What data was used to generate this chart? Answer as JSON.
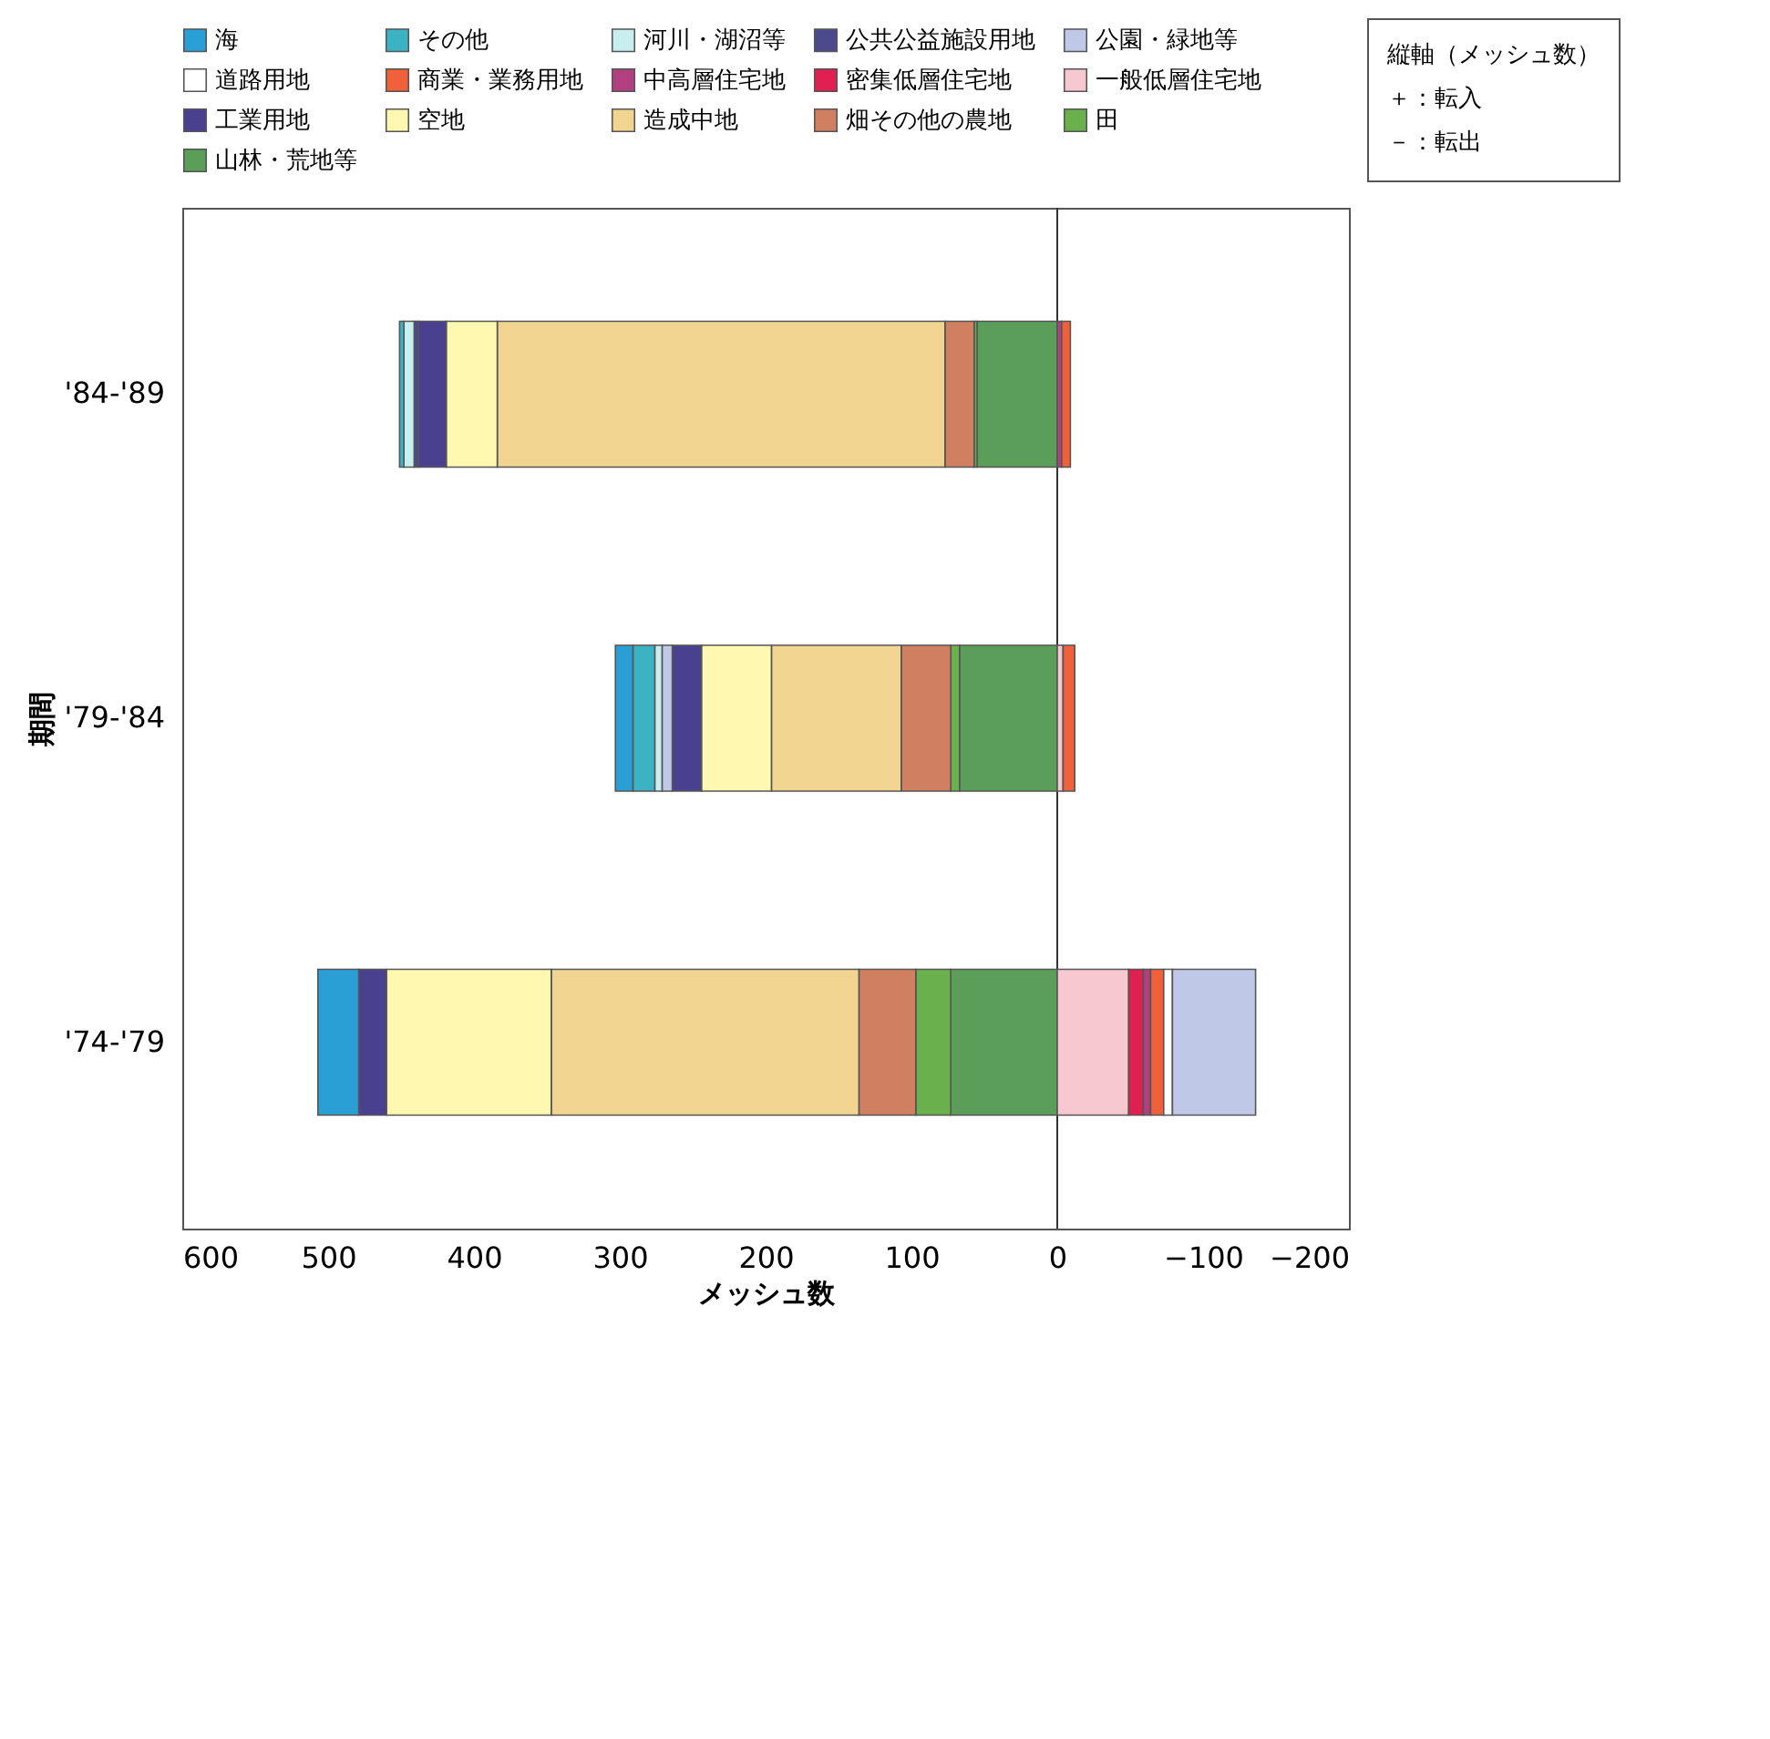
{
  "chart_data": {
    "type": "bar",
    "orientation": "horizontal",
    "stacked": true,
    "xlabel": "メッシュ数",
    "ylabel": "期間",
    "categories": [
      "'84-'89",
      "'79-'84",
      "'74-'79"
    ],
    "xlim": [
      600,
      -200
    ],
    "xticks": [
      600,
      500,
      400,
      300,
      200,
      100,
      0,
      -100,
      -200
    ],
    "legend": "top",
    "ref_lines": [
      {
        "axis": "x",
        "value": 0,
        "color": "#333333"
      }
    ],
    "annotations": [
      "縦軸（メッシュ数）",
      "＋：転入",
      "－：転出"
    ],
    "series": [
      {
        "name": "山林・荒地等",
        "color": "#5a9e5a",
        "values": [
          55,
          67,
          73
        ]
      },
      {
        "name": "田",
        "color": "#6ab04c",
        "values": [
          2,
          6,
          24
        ]
      },
      {
        "name": "畑その他の農地",
        "color": "#d08060",
        "values": [
          20,
          34,
          39
        ]
      },
      {
        "name": "造成中地",
        "color": "#f0d490",
        "values": [
          307,
          89,
          211
        ]
      },
      {
        "name": "空地",
        "color": "#fff8b0",
        "values": [
          35,
          48,
          113
        ]
      },
      {
        "name": "工業用地",
        "color": "#4a4090",
        "values": [
          19,
          20,
          19
        ]
      },
      {
        "name": "一般低層住宅地",
        "color": "#f8c8d0",
        "values": [
          null,
          -4,
          -49
        ]
      },
      {
        "name": "密集低層住宅地",
        "color": "#e02050",
        "values": [
          null,
          null,
          -10
        ]
      },
      {
        "name": "中高層住宅地",
        "color": "#b04080",
        "values": [
          -3,
          null,
          -5
        ]
      },
      {
        "name": "商業・業務用地",
        "color": "#f0603a",
        "values": [
          -6,
          -8,
          -9
        ]
      },
      {
        "name": "道路用地",
        "color": "#ffffff",
        "values": [
          null,
          null,
          -6
        ]
      },
      {
        "name": "公園・緑地等",
        "color": "#c0c8e8",
        "values": [
          null,
          7,
          -57
        ]
      },
      {
        "name": "公共公益施設用地",
        "color": "#4a4a8c",
        "values": [
          3,
          null,
          null
        ]
      },
      {
        "name": "河川・湖沼等",
        "color": "#c8eef0",
        "values": [
          7,
          5,
          null
        ]
      },
      {
        "name": "その他",
        "color": "#3bb3c3",
        "values": [
          3,
          15,
          null
        ]
      },
      {
        "name": "海",
        "color": "#2a9fd6",
        "values": [
          null,
          12,
          28
        ]
      }
    ]
  }
}
